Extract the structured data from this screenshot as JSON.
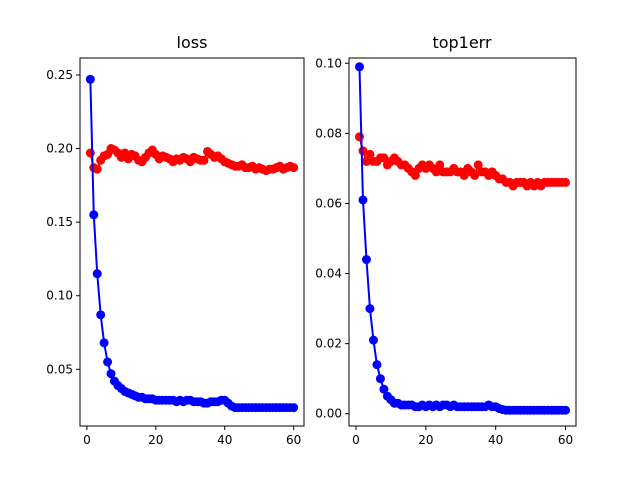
{
  "chart_data": [
    {
      "type": "line",
      "title": "loss",
      "xlabel": "",
      "ylabel": "",
      "xlim": [
        -2,
        63
      ],
      "ylim": [
        0.0115,
        0.2615
      ],
      "xticks": [
        0,
        20,
        40,
        60
      ],
      "xtick_labels": [
        "0",
        "20",
        "40",
        "60"
      ],
      "yticks": [
        0.05,
        0.1,
        0.15,
        0.2,
        0.25
      ],
      "ytick_labels": [
        "0.05",
        "0.10",
        "0.15",
        "0.20",
        "0.25"
      ],
      "grid": false,
      "x": [
        1,
        2,
        3,
        4,
        5,
        6,
        7,
        8,
        9,
        10,
        11,
        12,
        13,
        14,
        15,
        16,
        17,
        18,
        19,
        20,
        21,
        22,
        23,
        24,
        25,
        26,
        27,
        28,
        29,
        30,
        31,
        32,
        33,
        34,
        35,
        36,
        37,
        38,
        39,
        40,
        41,
        42,
        43,
        44,
        45,
        46,
        47,
        48,
        49,
        50,
        51,
        52,
        53,
        54,
        55,
        56,
        57,
        58,
        59,
        60
      ],
      "series": [
        {
          "color": "#ff0000",
          "values": [
            0.197,
            0.187,
            0.186,
            0.192,
            0.195,
            0.196,
            0.2,
            0.199,
            0.197,
            0.194,
            0.197,
            0.193,
            0.196,
            0.195,
            0.192,
            0.191,
            0.194,
            0.197,
            0.199,
            0.196,
            0.193,
            0.195,
            0.194,
            0.193,
            0.191,
            0.193,
            0.192,
            0.194,
            0.193,
            0.191,
            0.194,
            0.193,
            0.192,
            0.192,
            0.198,
            0.196,
            0.194,
            0.195,
            0.193,
            0.191,
            0.19,
            0.189,
            0.188,
            0.188,
            0.189,
            0.187,
            0.187,
            0.188,
            0.186,
            0.187,
            0.186,
            0.185,
            0.186,
            0.186,
            0.187,
            0.188,
            0.186,
            0.187,
            0.188,
            0.187
          ]
        },
        {
          "color": "#0000ff",
          "values": [
            0.247,
            0.155,
            0.115,
            0.087,
            0.068,
            0.055,
            0.047,
            0.042,
            0.039,
            0.037,
            0.035,
            0.034,
            0.033,
            0.032,
            0.031,
            0.031,
            0.03,
            0.03,
            0.03,
            0.029,
            0.029,
            0.029,
            0.029,
            0.029,
            0.029,
            0.028,
            0.029,
            0.028,
            0.029,
            0.029,
            0.028,
            0.028,
            0.028,
            0.027,
            0.027,
            0.028,
            0.028,
            0.028,
            0.029,
            0.029,
            0.027,
            0.025,
            0.024,
            0.024,
            0.024,
            0.024,
            0.024,
            0.024,
            0.024,
            0.024,
            0.024,
            0.024,
            0.024,
            0.024,
            0.024,
            0.024,
            0.024,
            0.024,
            0.024,
            0.024
          ]
        }
      ]
    },
    {
      "type": "line",
      "title": "top1err",
      "xlabel": "",
      "ylabel": "",
      "xlim": [
        -2,
        63
      ],
      "ylim": [
        -0.0035,
        0.1015
      ],
      "xticks": [
        0,
        20,
        40,
        60
      ],
      "xtick_labels": [
        "0",
        "20",
        "40",
        "60"
      ],
      "yticks": [
        0.0,
        0.02,
        0.04,
        0.06,
        0.08,
        0.1
      ],
      "ytick_labels": [
        "0.00",
        "0.02",
        "0.04",
        "0.06",
        "0.08",
        "0.10"
      ],
      "grid": false,
      "x": [
        1,
        2,
        3,
        4,
        5,
        6,
        7,
        8,
        9,
        10,
        11,
        12,
        13,
        14,
        15,
        16,
        17,
        18,
        19,
        20,
        21,
        22,
        23,
        24,
        25,
        26,
        27,
        28,
        29,
        30,
        31,
        32,
        33,
        34,
        35,
        36,
        37,
        38,
        39,
        40,
        41,
        42,
        43,
        44,
        45,
        46,
        47,
        48,
        49,
        50,
        51,
        52,
        53,
        54,
        55,
        56,
        57,
        58,
        59,
        60
      ],
      "series": [
        {
          "color": "#ff0000",
          "values": [
            0.079,
            0.075,
            0.072,
            0.074,
            0.072,
            0.072,
            0.073,
            0.073,
            0.071,
            0.072,
            0.073,
            0.072,
            0.071,
            0.071,
            0.07,
            0.069,
            0.068,
            0.07,
            0.071,
            0.07,
            0.071,
            0.07,
            0.069,
            0.071,
            0.069,
            0.069,
            0.069,
            0.07,
            0.069,
            0.069,
            0.068,
            0.07,
            0.069,
            0.068,
            0.071,
            0.069,
            0.069,
            0.068,
            0.069,
            0.068,
            0.067,
            0.067,
            0.066,
            0.066,
            0.065,
            0.066,
            0.066,
            0.066,
            0.065,
            0.066,
            0.065,
            0.066,
            0.065,
            0.066,
            0.066,
            0.066,
            0.066,
            0.066,
            0.066,
            0.066
          ]
        },
        {
          "color": "#0000ff",
          "values": [
            0.099,
            0.061,
            0.044,
            0.03,
            0.021,
            0.014,
            0.01,
            0.007,
            0.005,
            0.004,
            0.003,
            0.003,
            0.0025,
            0.0025,
            0.0025,
            0.0025,
            0.002,
            0.002,
            0.0025,
            0.002,
            0.0025,
            0.002,
            0.0025,
            0.002,
            0.0025,
            0.0025,
            0.002,
            0.0025,
            0.002,
            0.002,
            0.002,
            0.002,
            0.002,
            0.002,
            0.002,
            0.002,
            0.002,
            0.0025,
            0.002,
            0.002,
            0.0015,
            0.0012,
            0.001,
            0.001,
            0.001,
            0.001,
            0.001,
            0.001,
            0.001,
            0.001,
            0.001,
            0.001,
            0.001,
            0.001,
            0.001,
            0.001,
            0.001,
            0.001,
            0.001,
            0.001
          ]
        }
      ]
    }
  ]
}
